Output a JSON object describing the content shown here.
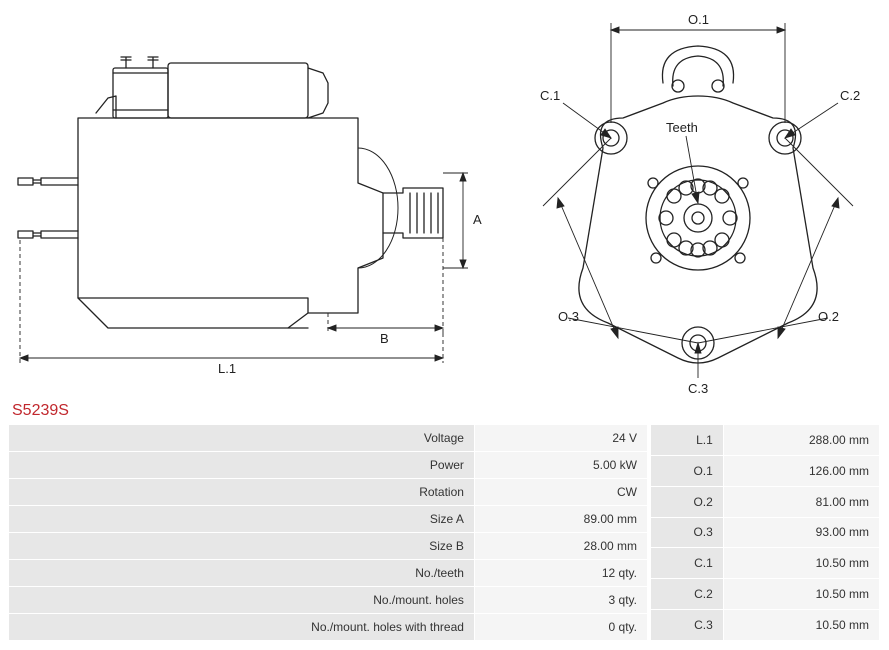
{
  "part_number": "S5239S",
  "diagram": {
    "stroke": "#222222",
    "stroke_width": 1.2,
    "label_font_size": 13,
    "side": {
      "dim_A": "A",
      "dim_B": "B",
      "dim_L1": "L.1"
    },
    "front": {
      "dim_O1": "O.1",
      "dim_O2": "O.2",
      "dim_O3": "O.3",
      "dim_C1": "C.1",
      "dim_C2": "C.2",
      "dim_C3": "C.3",
      "teeth": "Teeth"
    }
  },
  "specs_left": [
    {
      "label": "Voltage",
      "value": "24 V"
    },
    {
      "label": "Power",
      "value": "5.00 kW"
    },
    {
      "label": "Rotation",
      "value": "CW"
    },
    {
      "label": "Size A",
      "value": "89.00 mm"
    },
    {
      "label": "Size B",
      "value": "28.00 mm"
    },
    {
      "label": "No./teeth",
      "value": "12 qty."
    },
    {
      "label": "No./mount. holes",
      "value": "3 qty."
    },
    {
      "label": "No./mount. holes with thread",
      "value": "0 qty."
    }
  ],
  "specs_right": [
    {
      "label": "L.1",
      "value": "288.00 mm"
    },
    {
      "label": "O.1",
      "value": "126.00 mm"
    },
    {
      "label": "O.2",
      "value": "81.00 mm"
    },
    {
      "label": "O.3",
      "value": "93.00 mm"
    },
    {
      "label": "C.1",
      "value": "10.50 mm"
    },
    {
      "label": "C.2",
      "value": "10.50 mm"
    },
    {
      "label": "C.3",
      "value": "10.50 mm"
    }
  ]
}
